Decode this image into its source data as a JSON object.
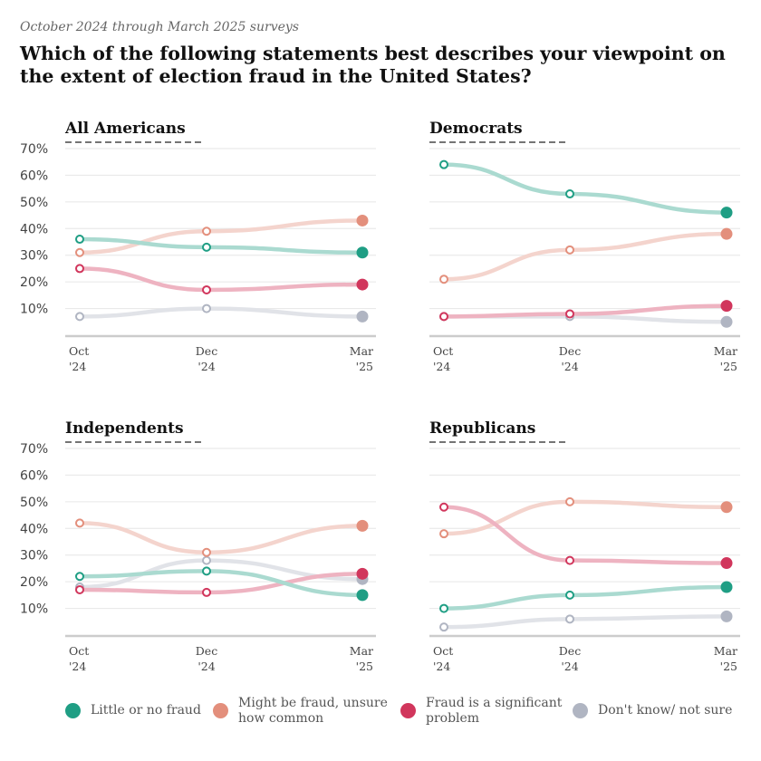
{
  "header": {
    "subtitle": "October 2024 through March 2025 surveys",
    "title": "Which of the following statements best describes your viewpoint on the extent of election fraud in the United States?"
  },
  "colors": {
    "little": "#1f9e84",
    "might": "#e38f7c",
    "significant": "#d1365c",
    "dontknow": "#b0b5c2"
  },
  "chart_data": {
    "type": "line",
    "x": [
      "Oct '24",
      "Dec '24",
      "Mar '25"
    ],
    "x_tick_lines": [
      [
        "Oct",
        "'24"
      ],
      [
        "Dec",
        "'24"
      ],
      [
        "Mar",
        "'25"
      ]
    ],
    "ylim": [
      0,
      70
    ],
    "yticks": [
      10,
      20,
      30,
      40,
      50,
      60,
      70
    ],
    "ytick_labels": [
      "10%",
      "20%",
      "30%",
      "40%",
      "50%",
      "60%",
      "70%"
    ],
    "legend": [
      {
        "key": "little",
        "label": "Little or no fraud"
      },
      {
        "key": "might",
        "label": "Might be fraud, unsure how common"
      },
      {
        "key": "significant",
        "label": "Fraud is a significant problem"
      },
      {
        "key": "dontknow",
        "label": "Don't know/ not sure"
      }
    ],
    "panels": [
      {
        "title": "All Americans",
        "series": [
          {
            "key": "little",
            "values": [
              36,
              33,
              31
            ]
          },
          {
            "key": "might",
            "values": [
              31,
              39,
              43
            ]
          },
          {
            "key": "significant",
            "values": [
              25,
              17,
              19
            ]
          },
          {
            "key": "dontknow",
            "values": [
              7,
              10,
              7
            ]
          }
        ]
      },
      {
        "title": "Democrats",
        "series": [
          {
            "key": "little",
            "values": [
              64,
              53,
              46
            ]
          },
          {
            "key": "might",
            "values": [
              21,
              32,
              38
            ]
          },
          {
            "key": "significant",
            "values": [
              7,
              8,
              11
            ]
          },
          {
            "key": "dontknow",
            "values": [
              7,
              7,
              5
            ]
          }
        ]
      },
      {
        "title": "Independents",
        "series": [
          {
            "key": "little",
            "values": [
              22,
              24,
              15
            ]
          },
          {
            "key": "might",
            "values": [
              42,
              31,
              41
            ]
          },
          {
            "key": "significant",
            "values": [
              17,
              16,
              23
            ]
          },
          {
            "key": "dontknow",
            "values": [
              18,
              28,
              21
            ]
          }
        ]
      },
      {
        "title": "Republicans",
        "series": [
          {
            "key": "little",
            "values": [
              10,
              15,
              18
            ]
          },
          {
            "key": "might",
            "values": [
              38,
              50,
              48
            ]
          },
          {
            "key": "significant",
            "values": [
              48,
              28,
              27
            ]
          },
          {
            "key": "dontknow",
            "values": [
              3,
              6,
              7
            ]
          }
        ]
      }
    ]
  }
}
